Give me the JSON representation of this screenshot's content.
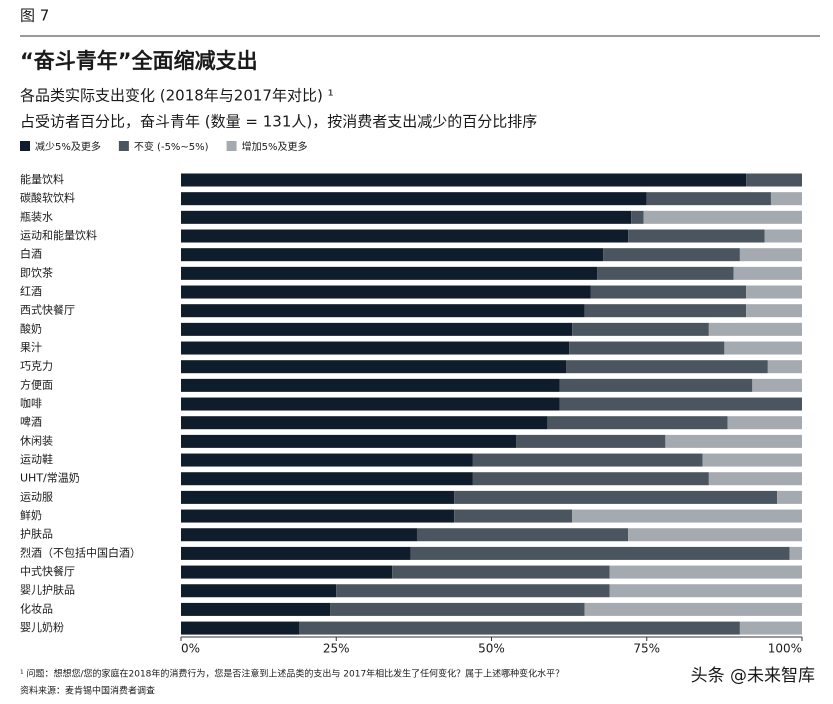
{
  "chart_data": {
    "type": "stacked_bar_horizontal",
    "figure_label": "图 7",
    "title": "“奋斗青年”全面缩减支出",
    "subtitle": "各品类实际支出变化 (2018年与2017年对比) ¹",
    "subtitle2": "占受访者百分比，奋斗青年 (数量 = 131人)，按消费者支出减少的百分比排序",
    "categories": [
      "能量饮料",
      "碳酸软饮料",
      "瓶装水",
      "运动和能量饮料",
      "白酒",
      "即饮茶",
      "红酒",
      "西式快餐厅",
      "酸奶",
      "果汁",
      "巧克力",
      "方便面",
      "咖啡",
      "啤酒",
      "休闲装",
      "运动鞋",
      "UHT/常温奶",
      "运动服",
      "鲜奶",
      "护肤品",
      "烈酒（不包括中国白酒）",
      "中式快餐厅",
      "婴儿护肤品",
      "化妆品",
      "婴儿奶粉"
    ],
    "series": [
      {
        "name": "减少5%及更多",
        "color": "#0e1c2b",
        "values": [
          91,
          75,
          72.5,
          72,
          68,
          67,
          66,
          65,
          63,
          62.5,
          62,
          61,
          61,
          59,
          54,
          47,
          47,
          44,
          44,
          38,
          37,
          34,
          25,
          24,
          19
        ]
      },
      {
        "name": "不变 (-5%~5%)",
        "color": "#4b5560",
        "values": [
          9,
          20,
          2,
          22,
          22,
          22,
          25,
          26,
          22,
          25,
          32.5,
          31,
          39,
          29,
          24,
          37,
          38,
          52,
          19,
          34,
          61,
          35,
          44,
          41,
          71
        ]
      },
      {
        "name": "增加5%及更多",
        "color": "#a4aaaf",
        "values": [
          0,
          5,
          25.5,
          6,
          10,
          11,
          9,
          9,
          15,
          12.5,
          5.5,
          8,
          0,
          12,
          22,
          16,
          15,
          4,
          37,
          28,
          2,
          31,
          31,
          35,
          10
        ]
      }
    ],
    "xlim": [
      0,
      100
    ],
    "xticks": [
      {
        "value": 0,
        "label": "0%"
      },
      {
        "value": 25,
        "label": "25%"
      },
      {
        "value": 50,
        "label": "50%"
      },
      {
        "value": 75,
        "label": "75%"
      },
      {
        "value": 100,
        "label": "100%"
      }
    ],
    "footnote": "¹ 问题：想想您/您的家庭在2018年的消费行为，您是否注意到上述品类的支出与 2017年相比发生了任何变化？属于上述哪种变化水平？",
    "source": "资料来源：麦肯锡中国消费者调查",
    "watermark": "头条 @未来智库"
  }
}
